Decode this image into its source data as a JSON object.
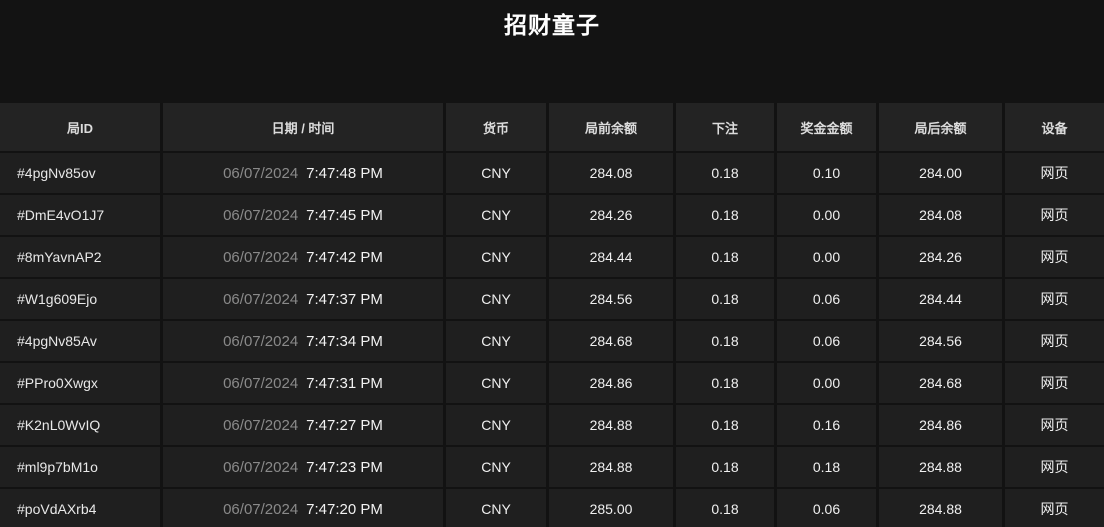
{
  "page": {
    "title": "招财童子",
    "colors": {
      "page_bg": "#131313",
      "header_bg": "#232323",
      "row_bg": "#1f1f1f",
      "divider": "#121212",
      "text_primary": "#f0f0f0",
      "text_header": "#dcdcdc",
      "date_muted": "#8a8a8a"
    }
  },
  "table": {
    "columns": [
      {
        "key": "id",
        "label": "局ID"
      },
      {
        "key": "datetime",
        "label": "日期 / 时间"
      },
      {
        "key": "currency",
        "label": "货币"
      },
      {
        "key": "balance_before",
        "label": "局前余额"
      },
      {
        "key": "bet",
        "label": "下注"
      },
      {
        "key": "prize",
        "label": "奖金金额"
      },
      {
        "key": "balance_after",
        "label": "局后余额"
      },
      {
        "key": "device",
        "label": "设备"
      }
    ],
    "rows": [
      {
        "id": "#4pgNv85ov",
        "date": "06/07/2024",
        "time": "7:47:48 PM",
        "currency": "CNY",
        "balance_before": "284.08",
        "bet": "0.18",
        "prize": "0.10",
        "balance_after": "284.00",
        "device": "网页"
      },
      {
        "id": "#DmE4vO1J7",
        "date": "06/07/2024",
        "time": "7:47:45 PM",
        "currency": "CNY",
        "balance_before": "284.26",
        "bet": "0.18",
        "prize": "0.00",
        "balance_after": "284.08",
        "device": "网页"
      },
      {
        "id": "#8mYavnAP2",
        "date": "06/07/2024",
        "time": "7:47:42 PM",
        "currency": "CNY",
        "balance_before": "284.44",
        "bet": "0.18",
        "prize": "0.00",
        "balance_after": "284.26",
        "device": "网页"
      },
      {
        "id": "#W1g609Ejo",
        "date": "06/07/2024",
        "time": "7:47:37 PM",
        "currency": "CNY",
        "balance_before": "284.56",
        "bet": "0.18",
        "prize": "0.06",
        "balance_after": "284.44",
        "device": "网页"
      },
      {
        "id": "#4pgNv85Av",
        "date": "06/07/2024",
        "time": "7:47:34 PM",
        "currency": "CNY",
        "balance_before": "284.68",
        "bet": "0.18",
        "prize": "0.06",
        "balance_after": "284.56",
        "device": "网页"
      },
      {
        "id": "#PPro0Xwgx",
        "date": "06/07/2024",
        "time": "7:47:31 PM",
        "currency": "CNY",
        "balance_before": "284.86",
        "bet": "0.18",
        "prize": "0.00",
        "balance_after": "284.68",
        "device": "网页"
      },
      {
        "id": "#K2nL0WvIQ",
        "date": "06/07/2024",
        "time": "7:47:27 PM",
        "currency": "CNY",
        "balance_before": "284.88",
        "bet": "0.18",
        "prize": "0.16",
        "balance_after": "284.86",
        "device": "网页"
      },
      {
        "id": "#ml9p7bM1o",
        "date": "06/07/2024",
        "time": "7:47:23 PM",
        "currency": "CNY",
        "balance_before": "284.88",
        "bet": "0.18",
        "prize": "0.18",
        "balance_after": "284.88",
        "device": "网页"
      },
      {
        "id": "#poVdAXrb4",
        "date": "06/07/2024",
        "time": "7:47:20 PM",
        "currency": "CNY",
        "balance_before": "285.00",
        "bet": "0.18",
        "prize": "0.06",
        "balance_after": "284.88",
        "device": "网页"
      }
    ]
  }
}
